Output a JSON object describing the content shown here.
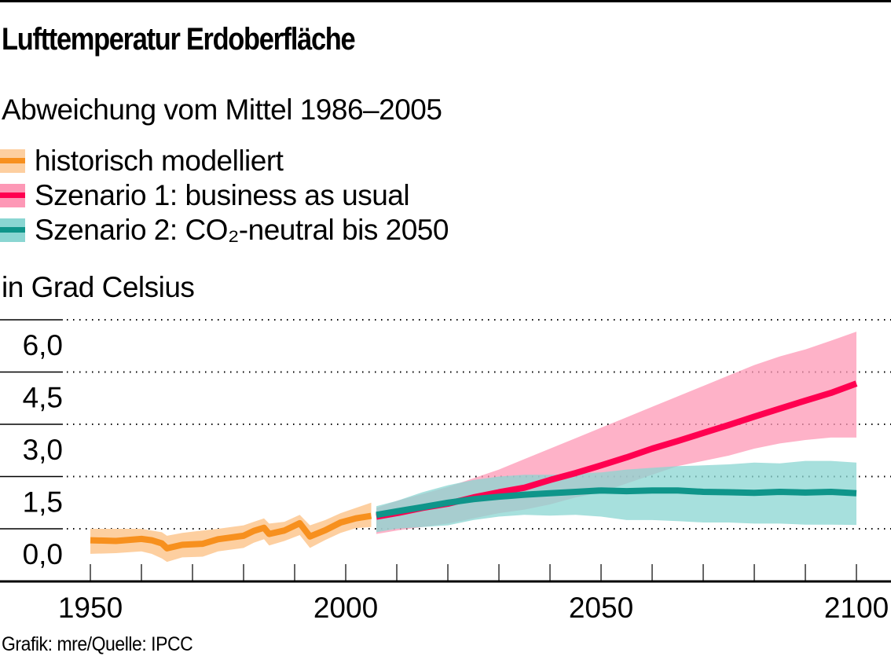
{
  "header": {
    "title": "Lufttemperatur Erdoberfläche",
    "subtitle": "Abweichung vom Mittel 1986–2005",
    "unit_label": "in Grad Celsius"
  },
  "legend": [
    {
      "label": "historisch modelliert",
      "line_color": "#f7901e",
      "band_color": "#fdcfa0"
    },
    {
      "label": "Szenario 1: business as usual",
      "line_color": "#ff0050",
      "band_color": "#fd98b6"
    },
    {
      "label": "Szenario 2: CO₂-neutral bis 2050",
      "line_color": "#0f958a",
      "band_color": "#8ad6d2"
    }
  ],
  "footer": {
    "source": "Grafik: mre/Quelle: IPCC"
  },
  "chart_data": {
    "type": "area",
    "title": "Lufttemperatur Erdoberfläche",
    "subtitle": "Abweichung vom Mittel 1986–2005",
    "xlabel": "",
    "ylabel": "in Grad Celsius",
    "xlim": [
      1950,
      2100
    ],
    "ylim": [
      -1.0,
      6.0
    ],
    "grid": true,
    "legend_position": "top-left",
    "x_tick_labels": [
      {
        "value": 1950,
        "label": "1950"
      },
      {
        "value": 2000,
        "label": "2000"
      },
      {
        "value": 2050,
        "label": "2050"
      },
      {
        "value": 2100,
        "label": "2100"
      }
    ],
    "x_minor_ticks_every": 10,
    "y_tick_labels": [
      {
        "value": 6.0,
        "label": "6,0"
      },
      {
        "value": 4.5,
        "label": "4,5"
      },
      {
        "value": 3.0,
        "label": "3,0"
      },
      {
        "value": 1.5,
        "label": "1,5"
      },
      {
        "value": 0.0,
        "label": "0,0"
      }
    ],
    "series": [
      {
        "name": "historisch modelliert",
        "color": "#f7901e",
        "band_color": "#fdcfa0",
        "x": [
          1950,
          1955,
          1960,
          1962,
          1964,
          1965,
          1968,
          1972,
          1975,
          1980,
          1982,
          1984,
          1985,
          1988,
          1991,
          1993,
          1996,
          1999,
          2002,
          2005
        ],
        "mean": [
          -0.33,
          -0.35,
          -0.29,
          -0.33,
          -0.42,
          -0.56,
          -0.46,
          -0.43,
          -0.3,
          -0.2,
          -0.06,
          0.03,
          -0.15,
          -0.05,
          0.16,
          -0.22,
          -0.04,
          0.18,
          0.3,
          0.37
        ],
        "lower": [
          -0.72,
          -0.7,
          -0.65,
          -0.72,
          -0.85,
          -0.95,
          -0.82,
          -0.8,
          -0.65,
          -0.55,
          -0.4,
          -0.3,
          -0.48,
          -0.35,
          -0.18,
          -0.55,
          -0.32,
          -0.12,
          0.02,
          0.05
        ],
        "upper": [
          0.0,
          0.0,
          0.0,
          -0.05,
          -0.1,
          -0.2,
          -0.12,
          -0.05,
          0.0,
          0.1,
          0.2,
          0.3,
          0.15,
          0.2,
          0.4,
          0.1,
          0.25,
          0.45,
          0.6,
          0.75
        ]
      },
      {
        "name": "Szenario 1: business as usual",
        "color": "#ff0050",
        "band_color": "#fd98b6",
        "x": [
          2006,
          2010,
          2015,
          2020,
          2025,
          2030,
          2035,
          2040,
          2045,
          2050,
          2055,
          2060,
          2065,
          2070,
          2075,
          2080,
          2085,
          2090,
          2095,
          2100
        ],
        "mean": [
          0.35,
          0.45,
          0.6,
          0.72,
          0.9,
          1.05,
          1.18,
          1.4,
          1.6,
          1.82,
          2.05,
          2.3,
          2.52,
          2.75,
          2.98,
          3.22,
          3.45,
          3.68,
          3.9,
          4.17
        ],
        "lower": [
          -0.15,
          -0.05,
          0.05,
          0.15,
          0.3,
          0.45,
          0.55,
          0.7,
          0.9,
          1.05,
          1.3,
          1.55,
          1.8,
          1.95,
          2.1,
          2.3,
          2.45,
          2.55,
          2.62,
          2.62
        ],
        "upper": [
          0.6,
          0.8,
          1.0,
          1.2,
          1.45,
          1.7,
          2.0,
          2.3,
          2.6,
          2.9,
          3.2,
          3.5,
          3.8,
          4.1,
          4.4,
          4.7,
          4.95,
          5.15,
          5.4,
          5.66
        ]
      },
      {
        "name": "Szenario 2: CO₂-neutral bis 2050",
        "color": "#0f958a",
        "band_color": "#8ad6d2",
        "x": [
          2006,
          2010,
          2015,
          2020,
          2025,
          2030,
          2035,
          2040,
          2045,
          2050,
          2055,
          2060,
          2065,
          2070,
          2075,
          2080,
          2085,
          2090,
          2095,
          2100
        ],
        "mean": [
          0.4,
          0.5,
          0.62,
          0.75,
          0.85,
          0.92,
          0.98,
          1.02,
          1.06,
          1.1,
          1.08,
          1.1,
          1.1,
          1.06,
          1.05,
          1.03,
          1.06,
          1.04,
          1.06,
          1.02
        ],
        "lower": [
          -0.1,
          0.0,
          0.05,
          0.1,
          0.25,
          0.35,
          0.4,
          0.38,
          0.4,
          0.35,
          0.25,
          0.25,
          0.22,
          0.18,
          0.18,
          0.15,
          0.15,
          0.12,
          0.12,
          0.11
        ],
        "upper": [
          0.65,
          0.8,
          1.05,
          1.25,
          1.4,
          1.5,
          1.55,
          1.55,
          1.58,
          1.62,
          1.7,
          1.75,
          1.8,
          1.82,
          1.85,
          1.9,
          1.88,
          1.95,
          1.95,
          1.9
        ]
      }
    ]
  }
}
